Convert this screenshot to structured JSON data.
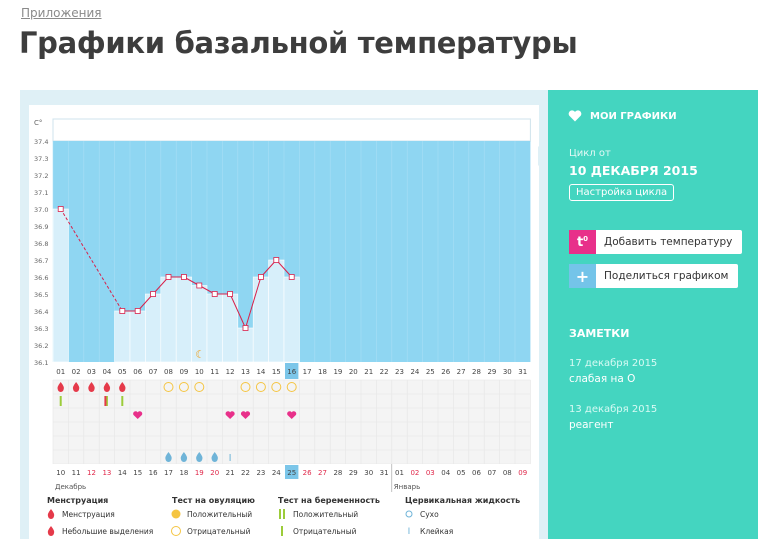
{
  "breadcrumb": "Приложения",
  "page_title": "Графики базальной температуры",
  "sidebar": {
    "my_graphs": "МОИ ГРАФИКИ",
    "cycle_label": "Цикл от",
    "cycle_date": "10 ДЕКАБРЯ 2015",
    "cycle_settings": "Настройка цикла",
    "add_temp": "Добавить температуру",
    "share": "Поделиться графиком",
    "notes_title": "ЗАМЕТКИ",
    "notes": [
      {
        "date": "17 декабря 2015",
        "text": "слабая на О"
      },
      {
        "date": "13 декабря 2015",
        "text": "реагент"
      }
    ]
  },
  "colors": {
    "accent": "#44d5c0",
    "chart_area": "#8fd6f2",
    "line": "#d9204a",
    "pink": "#e8308a"
  },
  "chart_data": {
    "type": "line",
    "ylabel": "С°",
    "y_ticks": [
      "37.4",
      "37.3",
      "37.2",
      "37.1",
      "37.0",
      "36.9",
      "36.8",
      "36.7",
      "36.6",
      "36.5",
      "36.4",
      "36.3",
      "36.2",
      "36.1"
    ],
    "ylim": [
      36.1,
      37.4
    ],
    "day_numbers": [
      "01",
      "02",
      "03",
      "04",
      "05",
      "06",
      "07",
      "08",
      "09",
      "10",
      "11",
      "12",
      "13",
      "14",
      "15",
      "16",
      "17",
      "18",
      "19",
      "20",
      "21",
      "22",
      "23",
      "24",
      "25",
      "26",
      "27",
      "28",
      "29",
      "30",
      "31"
    ],
    "dates": [
      "10",
      "11",
      "12",
      "13",
      "14",
      "15",
      "16",
      "17",
      "18",
      "19",
      "20",
      "21",
      "22",
      "23",
      "24",
      "25",
      "26",
      "27",
      "28",
      "29",
      "30",
      "31",
      "01",
      "02",
      "03",
      "04",
      "05",
      "06",
      "07",
      "08",
      "09"
    ],
    "date_red": [
      false,
      false,
      true,
      true,
      false,
      false,
      false,
      false,
      false,
      true,
      true,
      false,
      false,
      false,
      false,
      false,
      true,
      true,
      false,
      false,
      false,
      false,
      false,
      true,
      true,
      false,
      false,
      false,
      false,
      false,
      true
    ],
    "highlight_day": 16,
    "month_labels": [
      "Декабрь",
      "Январь"
    ],
    "points": [
      {
        "day": 1,
        "temp": 37.0
      },
      {
        "day": 5,
        "temp": 36.4
      },
      {
        "day": 6,
        "temp": 36.4
      },
      {
        "day": 7,
        "temp": 36.5
      },
      {
        "day": 8,
        "temp": 36.6
      },
      {
        "day": 9,
        "temp": 36.6
      },
      {
        "day": 10,
        "temp": 36.55
      },
      {
        "day": 11,
        "temp": 36.5
      },
      {
        "day": 12,
        "temp": 36.5
      },
      {
        "day": 13,
        "temp": 36.3
      },
      {
        "day": 14,
        "temp": 36.6
      },
      {
        "day": 15,
        "temp": 36.7
      },
      {
        "day": 16,
        "temp": 36.6
      }
    ],
    "moon_day": 10,
    "menstruation_days": [
      1,
      2,
      3,
      4
    ],
    "light_discharge_days": [
      5
    ],
    "ovulation_negative_days": [
      8,
      9,
      10,
      13,
      14,
      15,
      16
    ],
    "pregnancy_negative_days": [
      1,
      4,
      5
    ],
    "heart_days": [
      6,
      12,
      13,
      16
    ],
    "fluid_drop_days": [
      8,
      9,
      10,
      11
    ],
    "fluid_sticky_days": [
      12
    ]
  },
  "legend": {
    "menstruation": {
      "title": "Менструация",
      "items": [
        "Менструация",
        "Небольшие выделения"
      ]
    },
    "ovulation": {
      "title": "Тест на овуляцию",
      "items": [
        "Положительный",
        "Отрицательный"
      ]
    },
    "pregnancy": {
      "title": "Тест на беременность",
      "items": [
        "Положительный",
        "Отрицательный"
      ]
    },
    "fluid": {
      "title": "Цервикальная жидкость",
      "items": [
        "Сухо",
        "Клейкая"
      ]
    }
  }
}
